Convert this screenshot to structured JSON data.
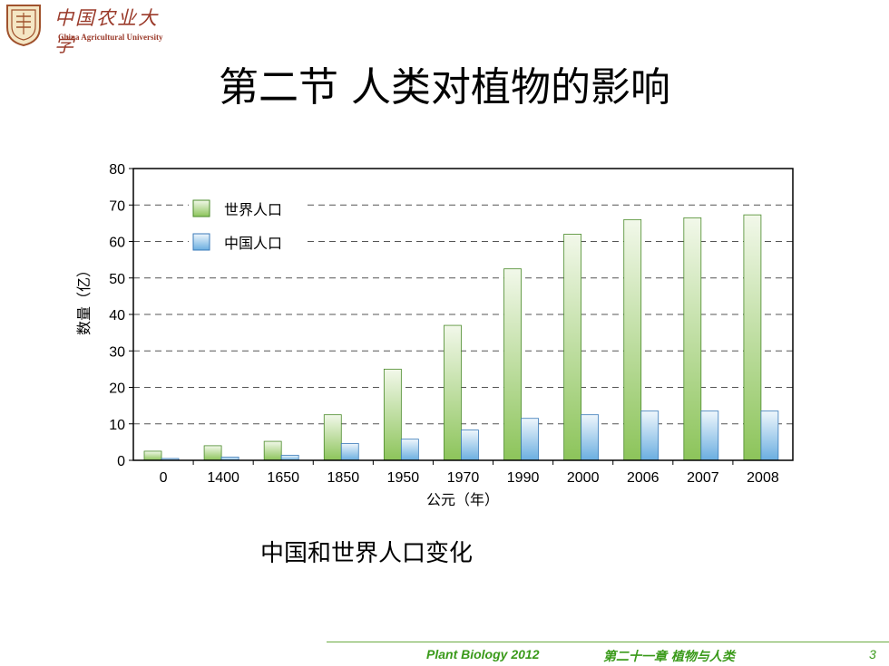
{
  "header": {
    "logo_cn": "中国农业大学",
    "logo_en": "China Agricultural University"
  },
  "slide": {
    "title": "第二节 人类对植物的影响",
    "caption": "中国和世界人口变化"
  },
  "footer": {
    "course": "Plant Biology  2012",
    "chapter": "第二十一章   植物与人类",
    "page": "3"
  },
  "colors": {
    "world": "#8cc45a",
    "china": "#6aaee0",
    "footer": "#3a9a1a"
  },
  "chart_data": {
    "type": "bar",
    "title": "",
    "xlabel": "公元（年）",
    "ylabel": "数量（亿）",
    "ylim": [
      0,
      80
    ],
    "yticks": [
      0,
      10,
      20,
      30,
      40,
      50,
      60,
      70,
      80
    ],
    "grid": true,
    "legend_position": "top-left",
    "categories": [
      "0",
      "1400",
      "1650",
      "1850",
      "1950",
      "1970",
      "1990",
      "2000",
      "2006",
      "2007",
      "2008"
    ],
    "series": [
      {
        "name": "世界人口",
        "values": [
          2.5,
          4,
          5.2,
          12.5,
          25,
          37,
          52.5,
          62,
          66,
          66.5,
          67.3
        ]
      },
      {
        "name": "中国人口",
        "values": [
          0.5,
          0.9,
          1.4,
          4.6,
          5.8,
          8.3,
          11.5,
          12.5,
          13.5,
          13.5,
          13.5
        ]
      }
    ]
  }
}
